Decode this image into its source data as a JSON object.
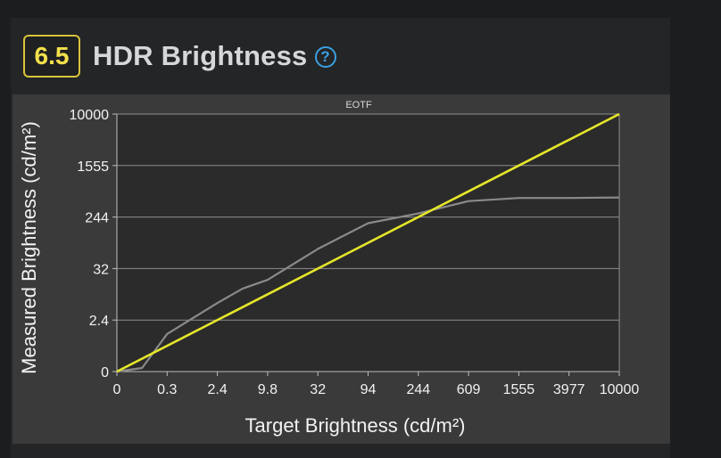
{
  "section": {
    "number": "6.5",
    "title": "HDR Brightness",
    "help_icon": "question-circle-icon"
  },
  "colors": {
    "badge": "#f3e04b",
    "help": "#3c9fe0",
    "target_line": "#e6e62a",
    "measured_line": "#8a8a8a"
  },
  "chart_data": {
    "type": "line",
    "title": "EOTF",
    "xlabel": "Target Brightness (cd/m²)",
    "ylabel": "Measured Brightness (cd/m²)",
    "x_tick_labels": [
      "0",
      "0.3",
      "2.4",
      "9.8",
      "32",
      "94",
      "244",
      "609",
      "1555",
      "3977",
      "10000"
    ],
    "y_tick_labels": [
      "0",
      "2.4",
      "32",
      "244",
      "1555",
      "10000"
    ],
    "y_tick_positions": [
      0,
      1,
      2,
      3,
      4,
      5
    ],
    "x_tick_positions": [
      0,
      1,
      2,
      3,
      4,
      5,
      6,
      7,
      8,
      9,
      10
    ],
    "xlim": [
      0,
      10
    ],
    "ylim": [
      0,
      5
    ],
    "grid": true,
    "series": [
      {
        "role": "target",
        "x": [
          0,
          10
        ],
        "y": [
          0,
          5
        ]
      },
      {
        "role": "measured",
        "x": [
          0,
          0.5,
          1.0,
          2.0,
          2.5,
          3.0,
          4.0,
          5.0,
          6.0,
          7.0,
          8.0,
          9.0,
          10.0
        ],
        "y": [
          0,
          0.07,
          0.73,
          1.33,
          1.61,
          1.78,
          2.38,
          2.88,
          3.07,
          3.31,
          3.37,
          3.37,
          3.38
        ]
      }
    ]
  }
}
